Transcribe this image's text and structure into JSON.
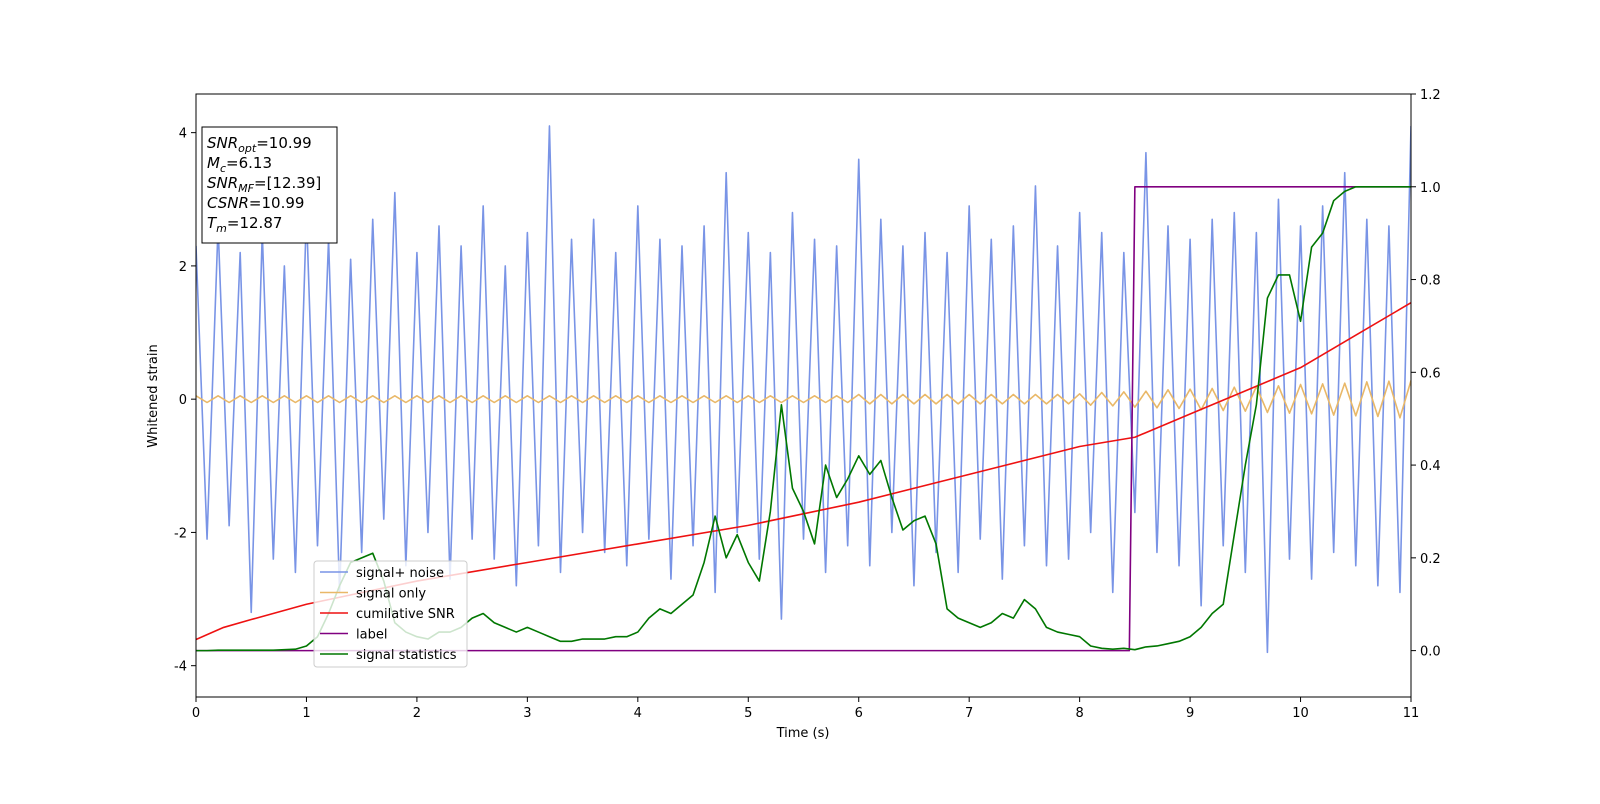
{
  "chart_data": {
    "type": "line",
    "xlabel": "Time (s)",
    "ylabel": "Whitened strain",
    "xlim": [
      0,
      11
    ],
    "ylim": [
      -4.47,
      4.58
    ],
    "y2lim": [
      -0.1,
      1.2
    ],
    "xticks": [
      0,
      1,
      2,
      3,
      4,
      5,
      6,
      7,
      8,
      9,
      10,
      11
    ],
    "yticks": [
      -4,
      -2,
      0,
      2,
      4
    ],
    "y2ticks": [
      {
        "value": 0,
        "label": "0.0"
      },
      {
        "value": 0.2,
        "label": "0.2"
      },
      {
        "value": 0.4,
        "label": "0.4"
      },
      {
        "value": 0.6,
        "label": "0.6"
      },
      {
        "value": 0.8,
        "label": "0.8"
      },
      {
        "value": 1.0,
        "label": "1.0"
      },
      {
        "value": 1.2,
        "label": "1.2"
      }
    ],
    "legend": "lower left",
    "x": [
      0,
      0.1,
      0.2,
      0.3,
      0.4,
      0.5,
      0.6,
      0.7,
      0.8,
      0.9,
      1,
      1.1,
      1.2,
      1.3,
      1.4,
      1.5,
      1.6,
      1.7,
      1.8,
      1.9,
      2,
      2.1,
      2.2,
      2.3,
      2.4,
      2.5,
      2.6,
      2.7,
      2.8,
      2.9,
      3,
      3.1,
      3.2,
      3.3,
      3.4,
      3.5,
      3.6,
      3.7,
      3.8,
      3.9,
      4,
      4.1,
      4.2,
      4.3,
      4.4,
      4.5,
      4.6,
      4.7,
      4.8,
      4.9,
      5,
      5.1,
      5.2,
      5.3,
      5.4,
      5.5,
      5.6,
      5.7,
      5.8,
      5.9,
      6,
      6.1,
      6.2,
      6.3,
      6.4,
      6.5,
      6.6,
      6.7,
      6.8,
      6.9,
      7,
      7.1,
      7.2,
      7.3,
      7.4,
      7.5,
      7.6,
      7.7,
      7.8,
      7.9,
      8,
      8.1,
      8.2,
      8.3,
      8.4,
      8.5,
      8.6,
      8.7,
      8.8,
      8.9,
      9,
      9.1,
      9.2,
      9.3,
      9.4,
      9.5,
      9.6,
      9.7,
      9.8,
      9.9,
      10,
      10.1,
      10.2,
      10.3,
      10.4,
      10.5,
      10.6,
      10.7,
      10.8,
      10.9,
      11
    ],
    "series": [
      {
        "name": "signal+ noise",
        "color": "#7994e6",
        "values": [
          2.3,
          -2.1,
          2.6,
          -1.9,
          2.2,
          -3.2,
          2.5,
          -2.4,
          2.0,
          -2.6,
          2.8,
          -2.2,
          2.4,
          -2.9,
          2.1,
          -2.3,
          2.7,
          -1.8,
          3.1,
          -2.5,
          2.2,
          -2.0,
          2.6,
          -2.7,
          2.3,
          -2.1,
          2.9,
          -2.4,
          2.0,
          -2.8,
          2.5,
          -2.2,
          4.1,
          -2.6,
          2.4,
          -2.0,
          2.7,
          -2.3,
          2.2,
          -2.5,
          2.9,
          -2.1,
          2.4,
          -2.7,
          2.3,
          -2.2,
          2.6,
          -2.9,
          3.4,
          -2.0,
          2.5,
          -2.4,
          2.2,
          -3.3,
          2.8,
          -2.1,
          2.4,
          -2.6,
          2.3,
          -2.2,
          3.6,
          -2.5,
          2.7,
          -2.0,
          2.3,
          -2.8,
          2.5,
          -2.3,
          2.2,
          -2.6,
          2.9,
          -2.1,
          2.4,
          -2.7,
          2.6,
          -2.2,
          3.2,
          -2.5,
          2.3,
          -2.4,
          2.8,
          -2.0,
          2.5,
          -2.9,
          2.2,
          -1.7,
          3.7,
          -2.3,
          2.6,
          -2.5,
          2.4,
          -3.1,
          2.7,
          -2.2,
          2.8,
          -2.6,
          2.5,
          -3.8,
          3.0,
          -2.4,
          2.6,
          -2.7,
          2.9,
          -2.3,
          3.4,
          -2.5,
          2.7,
          -2.8,
          2.6,
          -2.9,
          4.1
        ]
      },
      {
        "name": "signal only",
        "color": "#e9b868",
        "values": [
          0.05,
          -0.05,
          0.05,
          -0.05,
          0.05,
          -0.05,
          0.05,
          -0.05,
          0.05,
          -0.05,
          0.05,
          -0.05,
          0.05,
          -0.05,
          0.05,
          -0.05,
          0.05,
          -0.05,
          0.05,
          -0.05,
          0.05,
          -0.05,
          0.05,
          -0.05,
          0.05,
          -0.05,
          0.05,
          -0.05,
          0.05,
          -0.05,
          0.05,
          -0.05,
          0.05,
          -0.05,
          0.05,
          -0.05,
          0.05,
          -0.05,
          0.05,
          -0.05,
          0.05,
          -0.05,
          0.05,
          -0.05,
          0.05,
          -0.05,
          0.05,
          -0.05,
          0.05,
          -0.05,
          0.05,
          -0.05,
          0.05,
          -0.05,
          0.05,
          -0.05,
          0.05,
          -0.05,
          0.05,
          -0.05,
          0.07,
          -0.07,
          0.07,
          -0.07,
          0.07,
          -0.07,
          0.07,
          -0.07,
          0.07,
          -0.07,
          0.07,
          -0.07,
          0.07,
          -0.07,
          0.07,
          -0.07,
          0.07,
          -0.07,
          0.07,
          -0.07,
          0.08,
          -0.09,
          0.1,
          -0.1,
          0.11,
          -0.12,
          0.12,
          -0.13,
          0.14,
          -0.14,
          0.15,
          -0.16,
          0.16,
          -0.17,
          0.18,
          -0.18,
          0.19,
          -0.2,
          0.2,
          -0.21,
          0.22,
          -0.22,
          0.23,
          -0.24,
          0.24,
          -0.25,
          0.26,
          -0.26,
          0.27,
          -0.28,
          0.28
        ]
      },
      {
        "name": "cumilative SNR",
        "color": "#ee1111",
        "axis": "y2",
        "x": [
          0,
          0.25,
          0.5,
          1,
          2,
          3,
          4,
          5,
          6,
          7,
          8,
          8.5,
          9,
          9.5,
          10,
          10.5,
          11
        ],
        "values": [
          0.024,
          0.05,
          0.067,
          0.1,
          0.15,
          0.19,
          0.23,
          0.27,
          0.32,
          0.38,
          0.44,
          0.46,
          0.51,
          0.56,
          0.61,
          0.68,
          0.75
        ]
      },
      {
        "name": "label",
        "color": "#800080",
        "axis": "y2",
        "x": [
          0,
          8.45,
          8.5,
          11
        ],
        "values": [
          0,
          0,
          1,
          1
        ]
      },
      {
        "name": "signal statistics",
        "color": "#007700",
        "axis": "y2",
        "values": [
          0,
          0,
          0.001,
          0.001,
          0.001,
          0.001,
          0.001,
          0.001,
          0.002,
          0.003,
          0.01,
          0.03,
          0.08,
          0.14,
          0.19,
          0.2,
          0.21,
          0.15,
          0.06,
          0.04,
          0.03,
          0.025,
          0.04,
          0.04,
          0.05,
          0.07,
          0.08,
          0.06,
          0.05,
          0.04,
          0.05,
          0.04,
          0.03,
          0.02,
          0.02,
          0.025,
          0.025,
          0.025,
          0.03,
          0.03,
          0.04,
          0.07,
          0.09,
          0.08,
          0.1,
          0.12,
          0.19,
          0.29,
          0.2,
          0.25,
          0.19,
          0.15,
          0.3,
          0.53,
          0.35,
          0.3,
          0.23,
          0.4,
          0.33,
          0.37,
          0.42,
          0.38,
          0.41,
          0.33,
          0.26,
          0.28,
          0.29,
          0.23,
          0.09,
          0.07,
          0.06,
          0.05,
          0.06,
          0.08,
          0.07,
          0.11,
          0.09,
          0.05,
          0.04,
          0.035,
          0.03,
          0.01,
          0.005,
          0.003,
          0.005,
          0.002,
          0.008,
          0.01,
          0.015,
          0.02,
          0.03,
          0.05,
          0.08,
          0.1,
          0.25,
          0.4,
          0.53,
          0.76,
          0.81,
          0.81,
          0.71,
          0.87,
          0.9,
          0.97,
          0.99,
          1.0,
          1.0,
          1.0,
          1.0,
          1.0,
          1.0
        ]
      }
    ],
    "annotations": [
      {
        "var": "SNR",
        "sub": "opt",
        "text": "=10.99"
      },
      {
        "var": "M",
        "sub": "c",
        "text": "=6.13"
      },
      {
        "var": "SNR",
        "sub": "MF",
        "text": "=[12.39]"
      },
      {
        "var": "CSNR",
        "text": "=10.99"
      },
      {
        "var": "T",
        "sub": "m",
        "text": "=12.87"
      }
    ]
  }
}
